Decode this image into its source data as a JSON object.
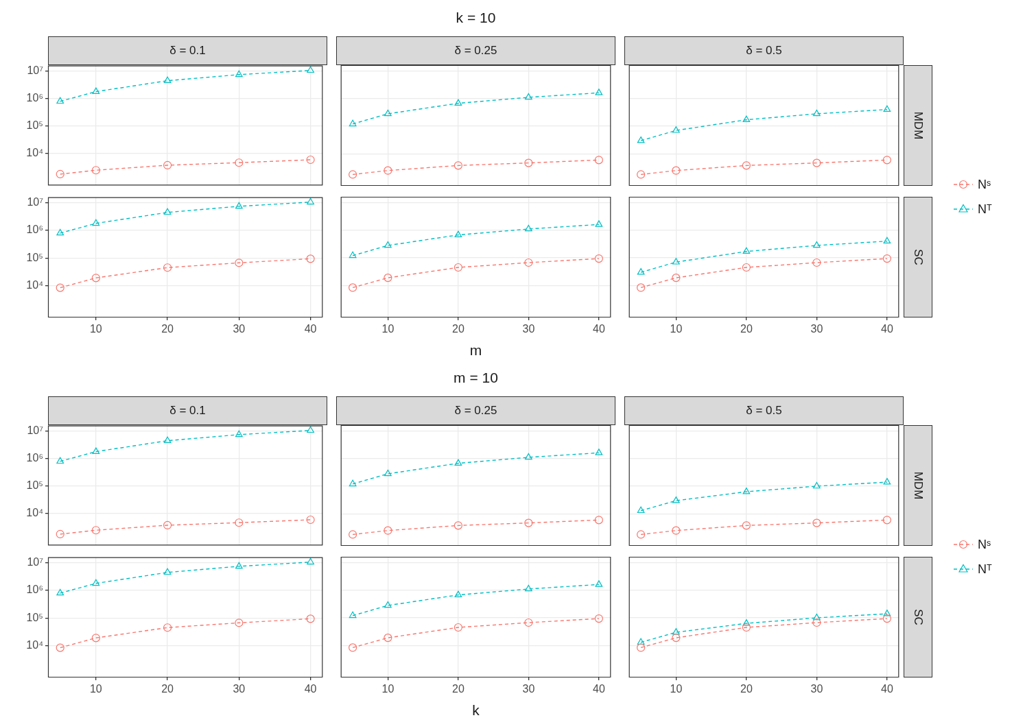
{
  "chart_data": [
    {
      "type": "line",
      "title": "δ = 0.1",
      "x": [
        5,
        10,
        20,
        30,
        40
      ],
      "xlim": [
        3.3,
        41.7
      ],
      "xticks": [
        10,
        20,
        30,
        40
      ],
      "ylim": [
        700,
        16000000
      ],
      "yticks": [
        {
          "value": 10000,
          "label": "10⁴"
        },
        {
          "value": 100000,
          "label": "10⁵"
        },
        {
          "value": 1000000,
          "label": "10⁶"
        },
        {
          "value": 10000000,
          "label": "10⁷"
        }
      ],
      "log": true,
      "grid": true,
      "tick_labels": "y",
      "series": [
        {
          "color": "#f8766d",
          "marker": "circle",
          "line_style": "dashed",
          "values": [
            1800,
            2500,
            3800,
            4700,
            6000
          ]
        },
        {
          "color": "#00bfc4",
          "marker": "triangle",
          "line_style": "dashed",
          "values": [
            800000,
            1800000,
            4500000,
            7500000,
            10600000
          ]
        }
      ]
    },
    {
      "type": "line",
      "title": "δ = 0.25",
      "annotations": [
        "k = 10"
      ],
      "x": [
        5,
        10,
        20,
        30,
        40
      ],
      "xlim": [
        3.3,
        41.7
      ],
      "xticks": [
        10,
        20,
        30,
        40
      ],
      "ylim": [
        700,
        16000000
      ],
      "yticks": [
        {
          "value": 10000,
          "label": null
        },
        {
          "value": 100000,
          "label": null
        },
        {
          "value": 1000000,
          "label": null
        },
        {
          "value": 10000000,
          "label": null
        }
      ],
      "log": true,
      "grid": true,
      "tick_labels": false,
      "series": [
        {
          "color": "#f8766d",
          "marker": "circle",
          "line_style": "dashed",
          "values": [
            1800,
            2500,
            3800,
            4700,
            6000
          ]
        },
        {
          "color": "#00bfc4",
          "marker": "triangle",
          "line_style": "dashed",
          "values": [
            120000,
            280000,
            670000,
            1100000,
            1600000
          ]
        }
      ]
    },
    {
      "type": "line",
      "title": "δ = 0.5",
      "y2label": "MDM",
      "x": [
        5,
        10,
        20,
        30,
        40
      ],
      "xlim": [
        3.3,
        41.7
      ],
      "xticks": [
        10,
        20,
        30,
        40
      ],
      "ylim": [
        700,
        16000000
      ],
      "yticks": [
        {
          "value": 10000,
          "label": null
        },
        {
          "value": 100000,
          "label": null
        },
        {
          "value": 1000000,
          "label": null
        },
        {
          "value": 10000000,
          "label": null
        }
      ],
      "log": true,
      "grid": true,
      "tick_labels": false,
      "series": [
        {
          "color": "#f8766d",
          "marker": "circle",
          "line_style": "dashed",
          "values": [
            1800,
            2500,
            3800,
            4700,
            6000
          ]
        },
        {
          "color": "#00bfc4",
          "marker": "triangle",
          "line_style": "dashed",
          "values": [
            30000,
            70000,
            170000,
            280000,
            400000
          ]
        }
      ]
    },
    {
      "type": "line",
      "x": [
        5,
        10,
        20,
        30,
        40
      ],
      "xlim": [
        3.3,
        41.7
      ],
      "xticks": [
        10,
        20,
        30,
        40
      ],
      "ylim": [
        700,
        16000000
      ],
      "yticks": [
        {
          "value": 10000,
          "label": "10⁴"
        },
        {
          "value": 100000,
          "label": "10⁵"
        },
        {
          "value": 1000000,
          "label": "10⁶"
        },
        {
          "value": 10000000,
          "label": "10⁷"
        }
      ],
      "log": true,
      "grid": true,
      "series": [
        {
          "color": "#f8766d",
          "marker": "circle",
          "line_style": "dashed",
          "values": [
            8400,
            19000,
            45000,
            67000,
            94000
          ]
        },
        {
          "color": "#00bfc4",
          "marker": "triangle",
          "line_style": "dashed",
          "values": [
            800000,
            1800000,
            4500000,
            7500000,
            10600000
          ]
        }
      ]
    },
    {
      "type": "line",
      "xlabel": "m",
      "x": [
        5,
        10,
        20,
        30,
        40
      ],
      "xlim": [
        3.3,
        41.7
      ],
      "xticks": [
        10,
        20,
        30,
        40
      ],
      "ylim": [
        700,
        16000000
      ],
      "yticks": [
        {
          "value": 10000,
          "label": null
        },
        {
          "value": 100000,
          "label": null
        },
        {
          "value": 1000000,
          "label": null
        },
        {
          "value": 10000000,
          "label": null
        }
      ],
      "log": true,
      "grid": true,
      "tick_labels": "x",
      "series": [
        {
          "color": "#f8766d",
          "marker": "circle",
          "line_style": "dashed",
          "values": [
            8400,
            19000,
            45000,
            67000,
            94000
          ]
        },
        {
          "color": "#00bfc4",
          "marker": "triangle",
          "line_style": "dashed",
          "values": [
            120000,
            280000,
            670000,
            1100000,
            1600000
          ]
        }
      ]
    },
    {
      "type": "line",
      "y2label": "SC",
      "legend": "right",
      "x": [
        5,
        10,
        20,
        30,
        40
      ],
      "xlim": [
        3.3,
        41.7
      ],
      "xticks": [
        10,
        20,
        30,
        40
      ],
      "ylim": [
        700,
        16000000
      ],
      "yticks": [
        {
          "value": 10000,
          "label": null
        },
        {
          "value": 100000,
          "label": null
        },
        {
          "value": 1000000,
          "label": null
        },
        {
          "value": 10000000,
          "label": null
        }
      ],
      "log": true,
      "grid": true,
      "tick_labels": "x",
      "series": [
        {
          "name": "Nˢ",
          "color": "#f8766d",
          "marker": "circle",
          "line_style": "dashed",
          "values": [
            8400,
            19000,
            45000,
            67000,
            94000
          ]
        },
        {
          "name": "Nᵀ",
          "color": "#00bfc4",
          "marker": "triangle",
          "line_style": "dashed",
          "values": [
            30000,
            70000,
            170000,
            280000,
            400000
          ]
        }
      ]
    },
    {
      "type": "line",
      "title": "δ = 0.1",
      "x": [
        5,
        10,
        20,
        30,
        40
      ],
      "xlim": [
        3.3,
        41.7
      ],
      "xticks": [
        10,
        20,
        30,
        40
      ],
      "ylim": [
        700,
        16000000
      ],
      "yticks": [
        {
          "value": 10000,
          "label": "10⁴"
        },
        {
          "value": 100000,
          "label": "10⁵"
        },
        {
          "value": 1000000,
          "label": "10⁶"
        },
        {
          "value": 10000000,
          "label": "10⁷"
        }
      ],
      "log": true,
      "grid": true,
      "tick_labels": "y",
      "series": [
        {
          "color": "#f8766d",
          "marker": "circle",
          "line_style": "dashed",
          "values": [
            1800,
            2500,
            3800,
            4700,
            6000
          ]
        },
        {
          "color": "#00bfc4",
          "marker": "triangle",
          "line_style": "dashed",
          "values": [
            800000,
            1800000,
            4500000,
            7500000,
            10600000
          ]
        }
      ]
    },
    {
      "type": "line",
      "title": "δ = 0.25",
      "annotations": [
        "m = 10"
      ],
      "x": [
        5,
        10,
        20,
        30,
        40
      ],
      "xlim": [
        3.3,
        41.7
      ],
      "xticks": [
        10,
        20,
        30,
        40
      ],
      "ylim": [
        700,
        16000000
      ],
      "yticks": [
        {
          "value": 10000,
          "label": null
        },
        {
          "value": 100000,
          "label": null
        },
        {
          "value": 1000000,
          "label": null
        },
        {
          "value": 10000000,
          "label": null
        }
      ],
      "log": true,
      "grid": true,
      "tick_labels": false,
      "series": [
        {
          "color": "#f8766d",
          "marker": "circle",
          "line_style": "dashed",
          "values": [
            1800,
            2500,
            3800,
            4700,
            6000
          ]
        },
        {
          "color": "#00bfc4",
          "marker": "triangle",
          "line_style": "dashed",
          "values": [
            120000,
            280000,
            670000,
            1100000,
            1600000
          ]
        }
      ]
    },
    {
      "type": "line",
      "title": "δ = 0.5",
      "y2label": "MDM",
      "x": [
        5,
        10,
        20,
        30,
        40
      ],
      "xlim": [
        3.3,
        41.7
      ],
      "xticks": [
        10,
        20,
        30,
        40
      ],
      "ylim": [
        700,
        16000000
      ],
      "yticks": [
        {
          "value": 10000,
          "label": null
        },
        {
          "value": 100000,
          "label": null
        },
        {
          "value": 1000000,
          "label": null
        },
        {
          "value": 10000000,
          "label": null
        }
      ],
      "log": true,
      "grid": true,
      "tick_labels": false,
      "series": [
        {
          "color": "#f8766d",
          "marker": "circle",
          "line_style": "dashed",
          "values": [
            1800,
            2500,
            3800,
            4700,
            6000
          ]
        },
        {
          "color": "#00bfc4",
          "marker": "triangle",
          "line_style": "dashed",
          "values": [
            13000,
            30000,
            63000,
            100000,
            140000
          ]
        }
      ]
    },
    {
      "type": "line",
      "x": [
        5,
        10,
        20,
        30,
        40
      ],
      "xlim": [
        3.3,
        41.7
      ],
      "xticks": [
        10,
        20,
        30,
        40
      ],
      "ylim": [
        700,
        16000000
      ],
      "yticks": [
        {
          "value": 10000,
          "label": "10⁴"
        },
        {
          "value": 100000,
          "label": "10⁵"
        },
        {
          "value": 1000000,
          "label": "10⁶"
        },
        {
          "value": 10000000,
          "label": "10⁷"
        }
      ],
      "log": true,
      "grid": true,
      "series": [
        {
          "color": "#f8766d",
          "marker": "circle",
          "line_style": "dashed",
          "values": [
            8400,
            19000,
            45000,
            67000,
            94000
          ]
        },
        {
          "color": "#00bfc4",
          "marker": "triangle",
          "line_style": "dashed",
          "values": [
            800000,
            1800000,
            4500000,
            7500000,
            10600000
          ]
        }
      ]
    },
    {
      "type": "line",
      "xlabel": "k",
      "x": [
        5,
        10,
        20,
        30,
        40
      ],
      "xlim": [
        3.3,
        41.7
      ],
      "xticks": [
        10,
        20,
        30,
        40
      ],
      "ylim": [
        700,
        16000000
      ],
      "yticks": [
        {
          "value": 10000,
          "label": null
        },
        {
          "value": 100000,
          "label": null
        },
        {
          "value": 1000000,
          "label": null
        },
        {
          "value": 10000000,
          "label": null
        }
      ],
      "log": true,
      "grid": true,
      "tick_labels": "x",
      "series": [
        {
          "color": "#f8766d",
          "marker": "circle",
          "line_style": "dashed",
          "values": [
            8400,
            19000,
            45000,
            67000,
            94000
          ]
        },
        {
          "color": "#00bfc4",
          "marker": "triangle",
          "line_style": "dashed",
          "values": [
            120000,
            280000,
            670000,
            1100000,
            1600000
          ]
        }
      ]
    },
    {
      "type": "line",
      "y2label": "SC",
      "legend": "right",
      "x": [
        5,
        10,
        20,
        30,
        40
      ],
      "xlim": [
        3.3,
        41.7
      ],
      "xticks": [
        10,
        20,
        30,
        40
      ],
      "ylim": [
        700,
        16000000
      ],
      "yticks": [
        {
          "value": 10000,
          "label": null
        },
        {
          "value": 100000,
          "label": null
        },
        {
          "value": 1000000,
          "label": null
        },
        {
          "value": 10000000,
          "label": null
        }
      ],
      "log": true,
      "grid": true,
      "tick_labels": "x",
      "series": [
        {
          "name": "Nˢ",
          "color": "#f8766d",
          "marker": "circle",
          "line_style": "dashed",
          "values": [
            8400,
            19000,
            45000,
            67000,
            94000
          ]
        },
        {
          "name": "Nᵀ",
          "color": "#00bfc4",
          "marker": "triangle",
          "line_style": "dashed",
          "values": [
            13000,
            30000,
            63000,
            100000,
            140000
          ]
        }
      ]
    }
  ]
}
